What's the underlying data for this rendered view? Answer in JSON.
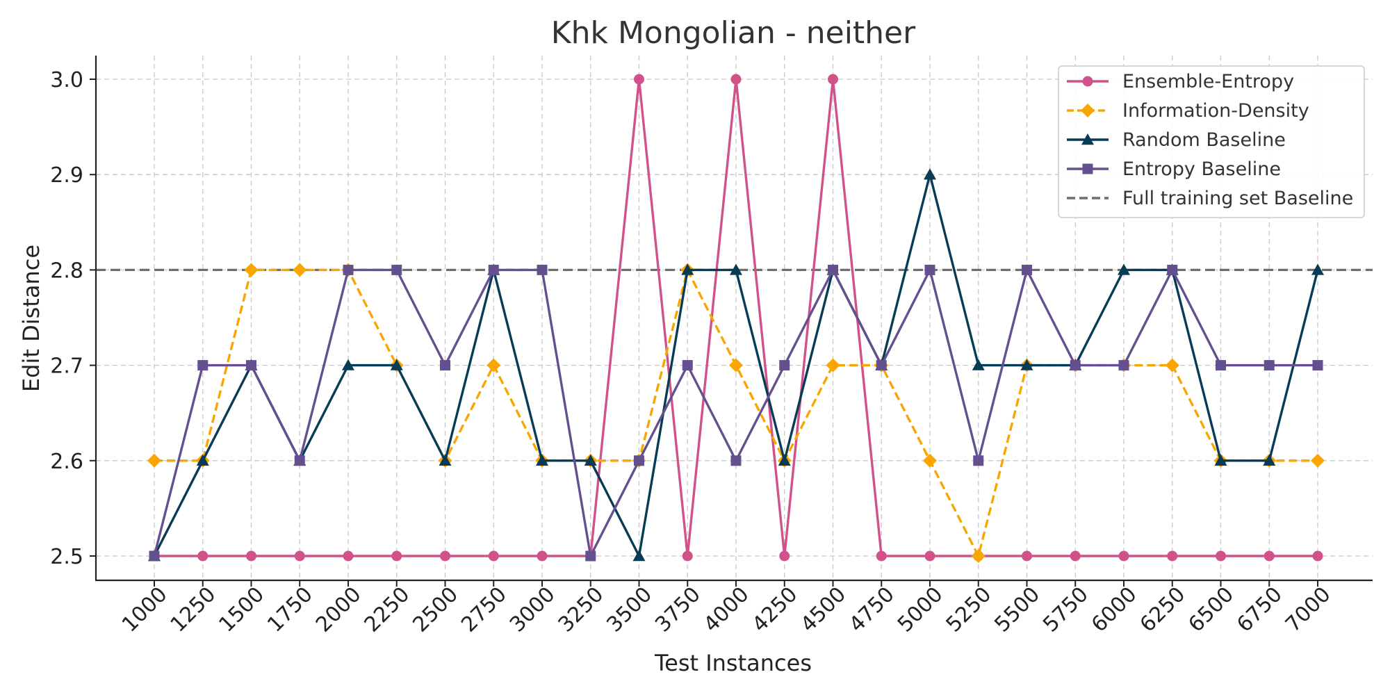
{
  "chart_data": {
    "type": "line",
    "title": "Khk Mongolian - neither",
    "xlabel": "Test Instances",
    "ylabel": "Edit Distance",
    "x": [
      1000,
      1250,
      1500,
      1750,
      2000,
      2250,
      2500,
      2750,
      3000,
      3250,
      3500,
      3750,
      4000,
      4250,
      4500,
      4750,
      5000,
      5250,
      5500,
      5750,
      6000,
      6250,
      6500,
      6750,
      7000
    ],
    "x_tick_labels": [
      "1000",
      "1250",
      "1500",
      "1750",
      "2000",
      "2250",
      "2500",
      "2750",
      "3000",
      "3250",
      "3500",
      "3750",
      "4000",
      "4250",
      "4500",
      "4750",
      "5000",
      "5250",
      "5500",
      "5750",
      "6000",
      "6250",
      "6500",
      "6750",
      "7000"
    ],
    "y_ticks": [
      2.5,
      2.6,
      2.7,
      2.8,
      2.9,
      3.0
    ],
    "y_tick_labels": [
      "2.5",
      "2.6",
      "2.7",
      "2.8",
      "2.9",
      "3.0"
    ],
    "ylim": [
      2.475,
      3.025
    ],
    "grid": true,
    "legend_position": "top-right",
    "series": [
      {
        "name": "Ensemble-Entropy",
        "color": "#d1528a",
        "marker": "circle",
        "dash": "solid",
        "values": [
          2.5,
          2.5,
          2.5,
          2.5,
          2.5,
          2.5,
          2.5,
          2.5,
          2.5,
          2.5,
          3.0,
          2.5,
          3.0,
          2.5,
          3.0,
          2.5,
          2.5,
          2.5,
          2.5,
          2.5,
          2.5,
          2.5,
          2.5,
          2.5,
          2.5
        ]
      },
      {
        "name": "Information-Density",
        "color": "#f9a602",
        "marker": "diamond",
        "dash": "dashed",
        "values": [
          2.6,
          2.6,
          2.8,
          2.8,
          2.8,
          2.7,
          2.6,
          2.7,
          2.6,
          2.6,
          2.6,
          2.8,
          2.7,
          2.6,
          2.7,
          2.7,
          2.6,
          2.5,
          2.7,
          2.7,
          2.7,
          2.7,
          2.6,
          2.6,
          2.6
        ]
      },
      {
        "name": "Random Baseline",
        "color": "#073b56",
        "marker": "triangle",
        "dash": "solid",
        "values": [
          2.5,
          2.6,
          2.7,
          2.6,
          2.7,
          2.7,
          2.6,
          2.8,
          2.6,
          2.6,
          2.5,
          2.8,
          2.8,
          2.6,
          2.8,
          2.7,
          2.9,
          2.7,
          2.7,
          2.7,
          2.8,
          2.8,
          2.6,
          2.6,
          2.8
        ]
      },
      {
        "name": "Entropy Baseline",
        "color": "#65508f",
        "marker": "square",
        "dash": "solid",
        "values": [
          2.5,
          2.7,
          2.7,
          2.6,
          2.8,
          2.8,
          2.7,
          2.8,
          2.8,
          2.5,
          2.6,
          2.7,
          2.6,
          2.7,
          2.8,
          2.7,
          2.8,
          2.6,
          2.8,
          2.7,
          2.7,
          2.8,
          2.7,
          2.7,
          2.7
        ]
      }
    ],
    "baseline": {
      "name": "Full training set Baseline",
      "value": 2.8,
      "color": "#6e6e6e",
      "dash": "dashed"
    }
  }
}
